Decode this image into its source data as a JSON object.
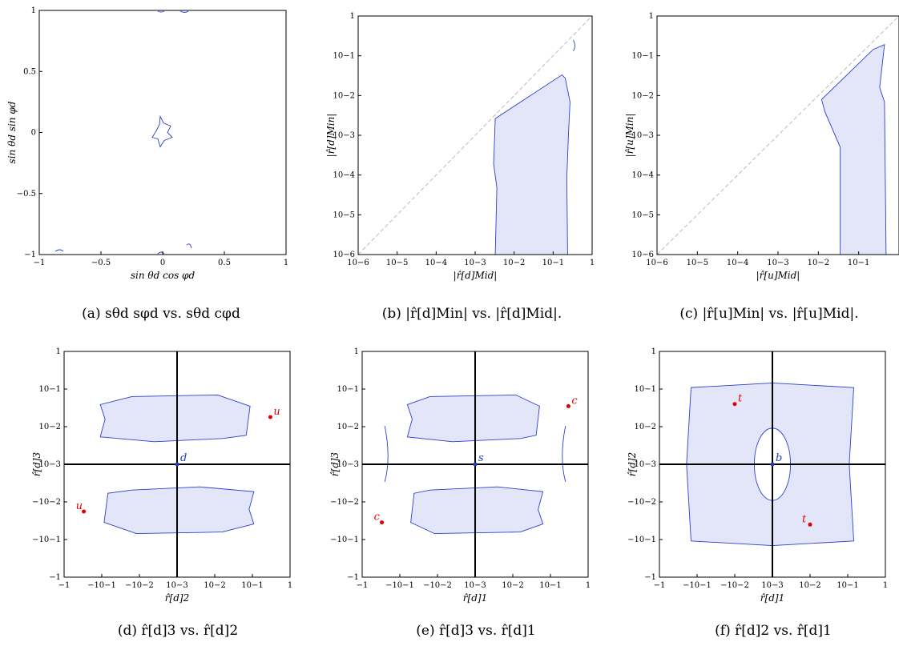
{
  "colors": {
    "region_fill": "#e3e6f9",
    "region_stroke": "#2b3fd0",
    "point": "#e00000",
    "origin": "#1b3fc4",
    "diagonal": "#bbbbbb"
  },
  "panels": [
    {
      "caption": "(a) sθd sφd vs. sθd cφd",
      "xlabel": "sin θd cos φd",
      "ylabel": "sin θd sin φd",
      "xticks": [
        "−1",
        "−0.5",
        "0",
        "0.5",
        "1"
      ],
      "yticks": [
        "1",
        "0.5",
        "0",
        "−0.5",
        "−1"
      ]
    },
    {
      "caption": "(b) |r̂[d]Min| vs. |r̂[d]Mid|.",
      "xlabel": "|r̂[d]Mid|",
      "ylabel": "|r̂[d]Min|",
      "xticks": [
        "10−6",
        "10−5",
        "10−4",
        "10−3",
        "10−2",
        "10−1",
        "1"
      ],
      "yticks": [
        "1",
        "10−1",
        "10−2",
        "10−3",
        "10−4",
        "10−5",
        "10−6"
      ]
    },
    {
      "caption": "(c) |r̂[u]Min| vs. |r̂[u]Mid|.",
      "xlabel": "|r̂[u]Mid|",
      "ylabel": "|r̂[u]Min|",
      "xticks": [
        "10−6",
        "10−5",
        "10−4",
        "10−3",
        "10−2",
        "10−1"
      ],
      "yticks": [
        "1",
        "10−1",
        "10−2",
        "10−3",
        "10−4",
        "10−5",
        "10−6"
      ]
    },
    {
      "caption": "(d) r̂[d]3 vs. r̂[d]2",
      "xlabel": "r̂[d]2",
      "ylabel": "r̂[d]3",
      "origin": "d",
      "points": [
        "u",
        "u"
      ],
      "xticks": [
        "−1",
        "−10−1",
        "−10−2",
        "10−3",
        "10−2",
        "10−1",
        "1"
      ],
      "yticks": [
        "1",
        "10−1",
        "10−2",
        "10−3",
        "−10−2",
        "−10−1",
        "−1"
      ]
    },
    {
      "caption": "(e) r̂[d]3 vs. r̂[d]1",
      "xlabel": "r̂[d]1",
      "ylabel": "r̂[d]3",
      "origin": "s",
      "points": [
        "c",
        "c"
      ],
      "xticks": [
        "−1",
        "−10−1",
        "−10−2",
        "10−3",
        "10−2",
        "10−1",
        "1"
      ],
      "yticks": [
        "1",
        "10−1",
        "10−2",
        "10−3",
        "−10−2",
        "−10−1",
        "−1"
      ]
    },
    {
      "caption": "(f) r̂[d]2 vs. r̂[d]1",
      "xlabel": "r̂[d]1",
      "ylabel": "r̂[d]2",
      "origin": "b",
      "points": [
        "t",
        "t"
      ],
      "xticks": [
        "−1",
        "−10−1",
        "−10−2",
        "10−3",
        "10−2",
        "10−1",
        "1"
      ],
      "yticks": [
        "1",
        "10−1",
        "10−2",
        "10−3",
        "−10−2",
        "−10−1",
        "−1"
      ]
    }
  ],
  "chart_data": [
    {
      "type": "area",
      "caption": "(a)",
      "xlim": [
        -1,
        1
      ],
      "ylim": [
        -1,
        1
      ]
    },
    {
      "type": "area",
      "caption": "(b)",
      "log_scale": true,
      "xlim": [
        1e-06,
        1
      ],
      "ylim": [
        1e-06,
        1
      ],
      "diagonal": true
    },
    {
      "type": "area",
      "caption": "(c)",
      "log_scale": true,
      "xlim": [
        1e-06,
        1
      ],
      "ylim": [
        1e-06,
        1
      ],
      "diagonal": true
    },
    {
      "type": "area",
      "caption": "(d)",
      "symlog_scale": true,
      "xlim": [
        -1,
        1
      ],
      "ylim": [
        -1,
        1
      ],
      "points": [
        {
          "label": "u",
          "x": 0.3,
          "y": 0.018
        },
        {
          "label": "u",
          "x": -0.3,
          "y": -0.018
        }
      ]
    },
    {
      "type": "area",
      "caption": "(e)",
      "symlog_scale": true,
      "xlim": [
        -1,
        1
      ],
      "ylim": [
        -1,
        1
      ],
      "points": [
        {
          "label": "c",
          "x": 0.3,
          "y": 0.035
        },
        {
          "label": "c",
          "x": -0.3,
          "y": -0.035
        }
      ]
    },
    {
      "type": "area",
      "caption": "(f)",
      "symlog_scale": true,
      "xlim": [
        -1,
        1
      ],
      "ylim": [
        -1,
        1
      ],
      "points": [
        {
          "label": "t",
          "x": -0.01,
          "y": 0.04
        },
        {
          "label": "t",
          "x": 0.01,
          "y": -0.04
        }
      ]
    }
  ]
}
